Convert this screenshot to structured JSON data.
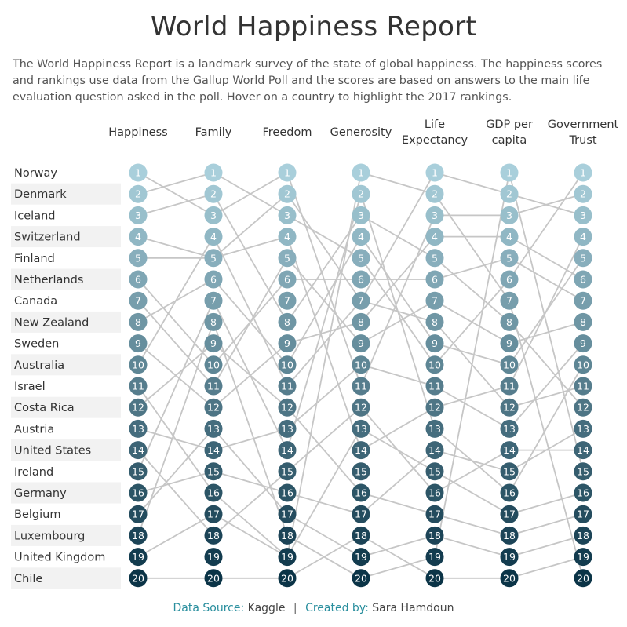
{
  "header": {
    "title": "World Happiness Report",
    "subtitle": "The World Happiness Report is a landmark survey of the state of global happiness. The happiness scores and rankings use data from the Gallup World Poll and the scores are based on answers to the main life evaluation question asked in the poll. Hover on a country to highlight the 2017 rankings."
  },
  "footer": {
    "source_label": "Data Source:",
    "source_value": "Kaggle",
    "separator": "|",
    "created_label": "Created by:",
    "created_value": "Sara Hamdoun"
  },
  "chart_data": {
    "type": "bump",
    "columns": [
      [
        "Happiness"
      ],
      [
        "Family"
      ],
      [
        "Freedom"
      ],
      [
        "Generosity"
      ],
      [
        "Life",
        "Expectancy"
      ],
      [
        "GDP per",
        "capita"
      ],
      [
        "Government",
        "Trust"
      ]
    ],
    "countries": [
      "Norway",
      "Denmark",
      "Iceland",
      "Switzerland",
      "Finland",
      "Netherlands",
      "Canada",
      "New Zealand",
      "Sweden",
      "Australia",
      "Israel",
      "Costa Rica",
      "Austria",
      "United States",
      "Ireland",
      "Germany",
      "Belgium",
      "Luxembourg",
      "United Kingdom",
      "Chile"
    ],
    "ranks": [
      1,
      2,
      3,
      4,
      5,
      6,
      7,
      8,
      9,
      10,
      11,
      12,
      13,
      14,
      15,
      16,
      17,
      18,
      19,
      20
    ],
    "rankings": [
      [
        1,
        3,
        1,
        11,
        3,
        3,
        2
      ],
      [
        2,
        1,
        3,
        5,
        10,
        6,
        1
      ],
      [
        3,
        2,
        8,
        3,
        5,
        8,
        12
      ],
      [
        4,
        5,
        2,
        7,
        1,
        2,
        3
      ],
      [
        5,
        5,
        4,
        14,
        12,
        11,
        4
      ],
      [
        6,
        10,
        6,
        6,
        6,
        5,
        7
      ],
      [
        7,
        11,
        5,
        9,
        7,
        9,
        8
      ],
      [
        8,
        6,
        10,
        4,
        9,
        10,
        5
      ],
      [
        9,
        12,
        9,
        8,
        4,
        4,
        6
      ],
      [
        10,
        4,
        11,
        7,
        8,
        12,
        11
      ],
      [
        11,
        16,
        19,
        13,
        15,
        17,
        16
      ],
      [
        12,
        9,
        12,
        16,
        17,
        18,
        17
      ],
      [
        13,
        14,
        13,
        10,
        11,
        13,
        9
      ],
      [
        14,
        18,
        15,
        12,
        16,
        14,
        14
      ],
      [
        15,
        7,
        14,
        2,
        13,
        16,
        10
      ],
      [
        16,
        15,
        16,
        17,
        14,
        15,
        13
      ],
      [
        17,
        13,
        17,
        19,
        18,
        19,
        18
      ],
      [
        18,
        8,
        18,
        20,
        19,
        1,
        15
      ],
      [
        19,
        17,
        19,
        1,
        2,
        7,
        20
      ],
      [
        20,
        20,
        20,
        18,
        20,
        20,
        19
      ]
    ],
    "colors": {
      "rank_light": "#a9cfdb",
      "rank_dark": "#0b3447",
      "line": "#c6c6c6",
      "stripe": "#f2f2f2"
    }
  }
}
